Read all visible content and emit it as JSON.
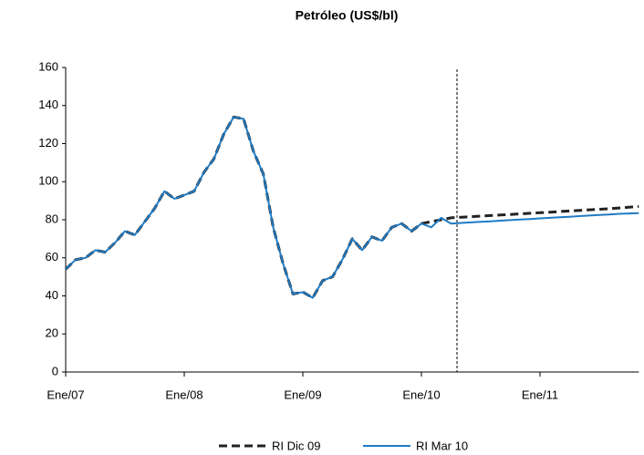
{
  "chart_data": {
    "type": "line",
    "title": "Petróleo (US$/bl)",
    "categories": [
      "Ene/07",
      null,
      null,
      null,
      null,
      null,
      null,
      null,
      null,
      null,
      null,
      null,
      "Ene/08",
      null,
      null,
      null,
      null,
      null,
      null,
      null,
      null,
      null,
      null,
      null,
      "Ene/09",
      null,
      null,
      null,
      null,
      null,
      null,
      null,
      null,
      null,
      null,
      null,
      "Ene/10",
      null,
      null,
      null,
      null,
      null,
      null,
      null,
      null,
      null,
      null,
      null,
      "Ene/11",
      null,
      null,
      null,
      null,
      null,
      null,
      null,
      null,
      null,
      null
    ],
    "series": [
      {
        "name": "RI Dic 09",
        "color": "#222222",
        "dashed": true,
        "values": [
          54,
          59,
          60,
          64,
          63,
          68,
          74,
          72,
          79,
          86,
          95,
          91,
          93,
          95,
          105,
          112,
          125,
          134,
          133,
          116,
          104,
          76,
          57,
          41,
          42,
          39,
          48,
          50,
          59,
          70,
          64,
          71,
          69,
          76,
          78,
          74,
          78,
          79,
          80,
          81,
          81.3,
          81.6,
          81.9,
          82.2,
          82.5,
          82.8,
          83.1,
          83.4,
          83.7,
          84,
          84.3,
          84.6,
          84.9,
          85.2,
          85.5,
          85.8,
          86.2,
          86.6,
          87
        ]
      },
      {
        "name": "RI Mar 10",
        "color": "#1f7bc4",
        "dashed": false,
        "values": [
          54,
          59,
          60,
          64,
          63,
          68,
          74,
          72,
          79,
          86,
          95,
          91,
          93,
          95,
          105,
          112,
          125,
          134,
          133,
          116,
          104,
          76,
          57,
          41,
          42,
          39,
          48,
          50,
          59,
          70,
          64,
          71,
          69,
          76,
          78,
          74,
          78,
          76,
          81,
          78,
          78.3,
          78.6,
          78.9,
          79.2,
          79.5,
          79.8,
          80.1,
          80.4,
          80.7,
          81,
          81.3,
          81.6,
          81.9,
          82.2,
          82.5,
          82.8,
          83.1,
          83.3,
          83.5
        ]
      }
    ],
    "ylim": [
      0,
      160
    ],
    "yticks": [
      0,
      20,
      40,
      60,
      80,
      100,
      120,
      140,
      160
    ],
    "grid": false
  }
}
